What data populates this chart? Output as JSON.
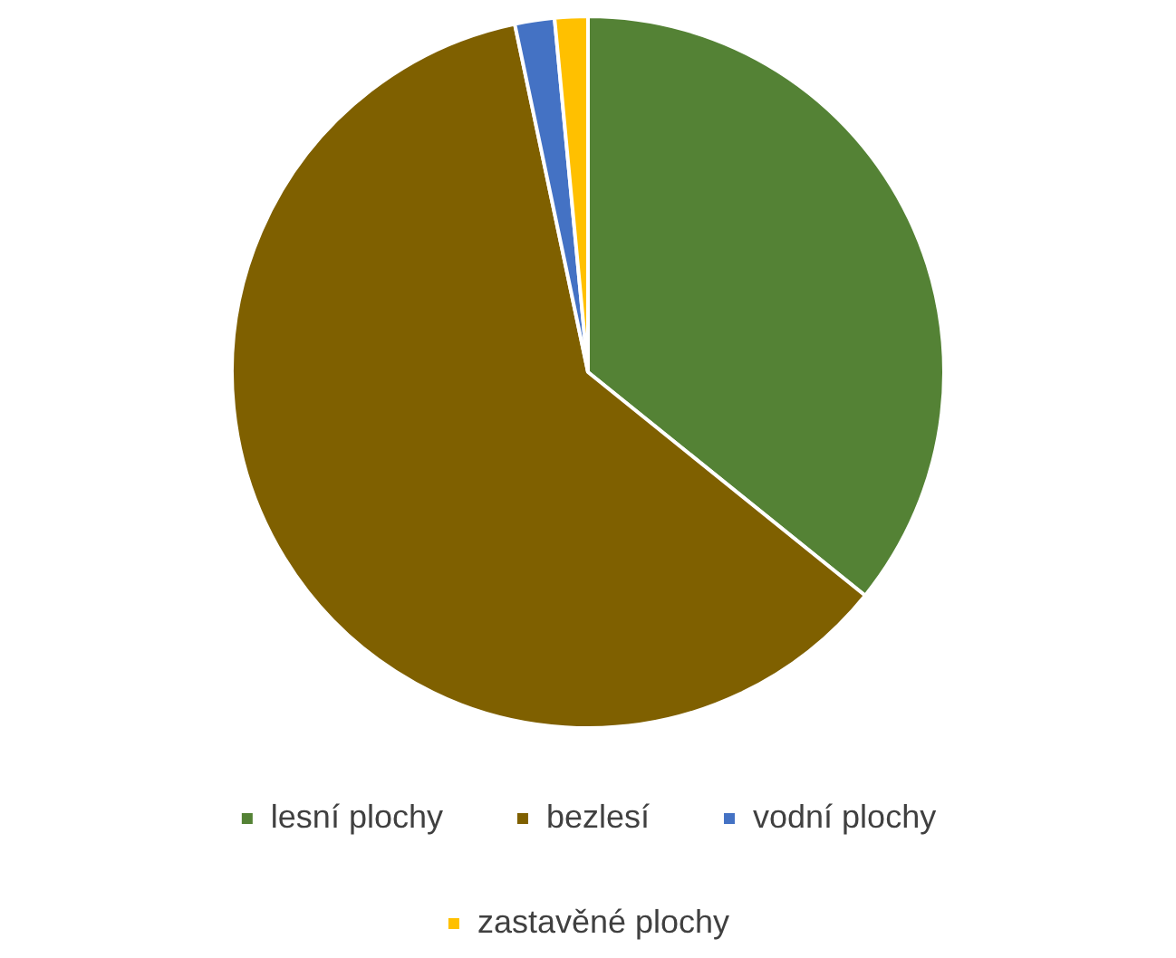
{
  "chart_data": {
    "type": "pie",
    "categories": [
      "lesní plochy",
      "bezlesí",
      "vodní plochy",
      "zastavěné plochy"
    ],
    "values": [
      35.8,
      60.9,
      1.8,
      1.5
    ],
    "colors": [
      "#548235",
      "#7f6000",
      "#4472c4",
      "#ffc000"
    ],
    "legend": "bottom"
  }
}
